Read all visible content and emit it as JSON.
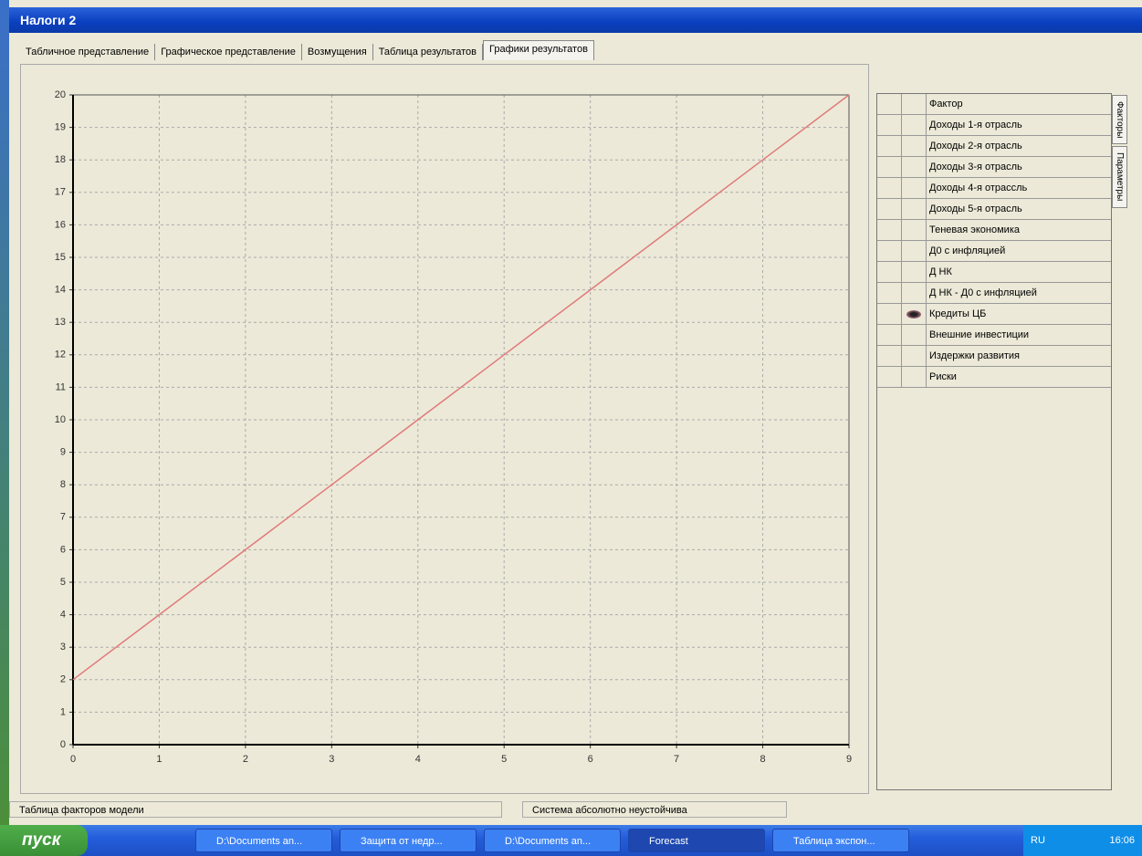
{
  "window": {
    "title": "Налоги 2"
  },
  "tabs": [
    "Табличное представление",
    "Графическое представление",
    "Возмущения",
    "Таблица результатов",
    "Графики результатов"
  ],
  "chart_data": {
    "type": "line",
    "x": [
      0,
      1,
      2,
      3,
      4,
      5,
      6,
      7,
      8,
      9
    ],
    "values": [
      2,
      4,
      6,
      8,
      10,
      12,
      14,
      16,
      18,
      20
    ],
    "color": "#e07a7a",
    "xlim": [
      0,
      9
    ],
    "ylim": [
      0,
      20
    ],
    "xticks": [
      0,
      1,
      2,
      3,
      4,
      5,
      6,
      7,
      8,
      9
    ],
    "yticks": [
      0,
      1,
      2,
      3,
      4,
      5,
      6,
      7,
      8,
      9,
      10,
      11,
      12,
      13,
      14,
      15,
      16,
      17,
      18,
      19,
      20
    ],
    "grid": true
  },
  "side_panel": {
    "header": "Фактор",
    "rows": [
      "Доходы 1-я отрасль",
      "Доходы 2-я отрасль",
      "Доходы 3-я отрасль",
      "Доходы 4-я отрассль",
      "Доходы 5-я отрасль",
      "Теневая экономика",
      "Д0 с инфляцией",
      "Д НК",
      "Д НК - Д0 с инфляцией",
      "Кредиты ЦБ",
      "Внешние инвестиции",
      "Издержки развития",
      "Риски"
    ]
  },
  "side_tabs": [
    "Факторы",
    "Параметры"
  ],
  "status_bar": [
    "Таблица факторов модели",
    "Система абсолютно неустойчива"
  ],
  "taskbar": {
    "start": "пуск",
    "items": [
      "D:\\Documents an...",
      "Защита от недр...",
      "D:\\Documents an...",
      "Forecast",
      "Таблица экспон..."
    ],
    "language": "RU",
    "clock": "16:06"
  }
}
